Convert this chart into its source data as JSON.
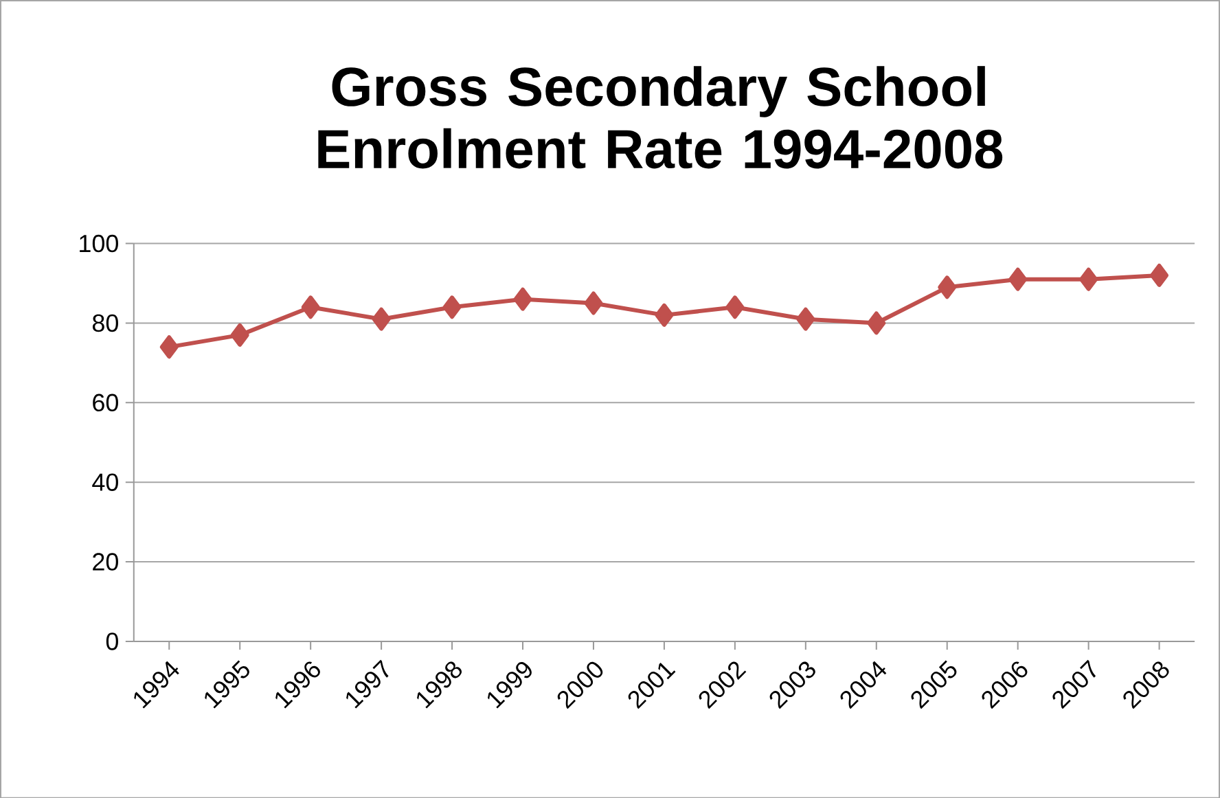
{
  "chart_data": {
    "type": "line",
    "title": "Gross Secondary School Enrolment Rate 1994-2008",
    "categories": [
      "1994",
      "1995",
      "1996",
      "1997",
      "1998",
      "1999",
      "2000",
      "2001",
      "2002",
      "2003",
      "2004",
      "2005",
      "2006",
      "2007",
      "2008"
    ],
    "series": [
      {
        "color": "#c0504d",
        "values": [
          74,
          77,
          84,
          81,
          84,
          86,
          85,
          82,
          84,
          81,
          80,
          89,
          91,
          91,
          92
        ]
      }
    ],
    "ylim": [
      0,
      100
    ],
    "yticks": [
      0,
      20,
      40,
      60,
      80,
      100
    ],
    "grid": "y",
    "marker": "diamond",
    "line_style": "solid"
  }
}
